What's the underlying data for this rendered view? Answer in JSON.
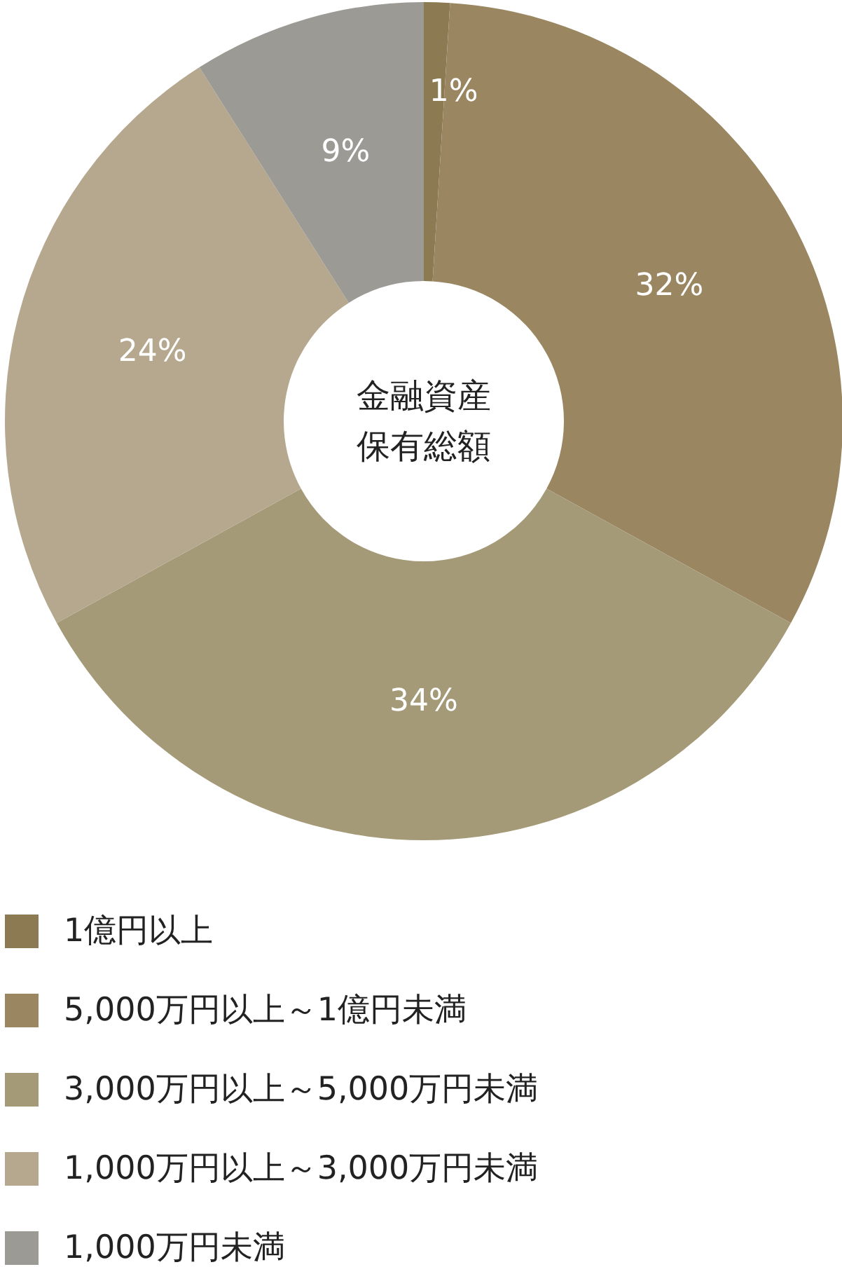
{
  "chart_data": {
    "type": "donut",
    "title": "金融資産保有総額",
    "categories": [
      "1億円以上",
      "5,000万円以上～1億円未満",
      "3,000万円以上～5,000万円未満",
      "1,000万円以上～3,000万円未満",
      "1,000万円未満"
    ],
    "values": [
      1,
      32,
      34,
      24,
      9
    ],
    "value_labels": [
      "1%",
      "32%",
      "34%",
      "24%",
      "9%"
    ],
    "colors": [
      "#8b7a52",
      "#9a8762",
      "#a59a78",
      "#b5a88e",
      "#9c9a94"
    ],
    "legend": "bottom"
  }
}
